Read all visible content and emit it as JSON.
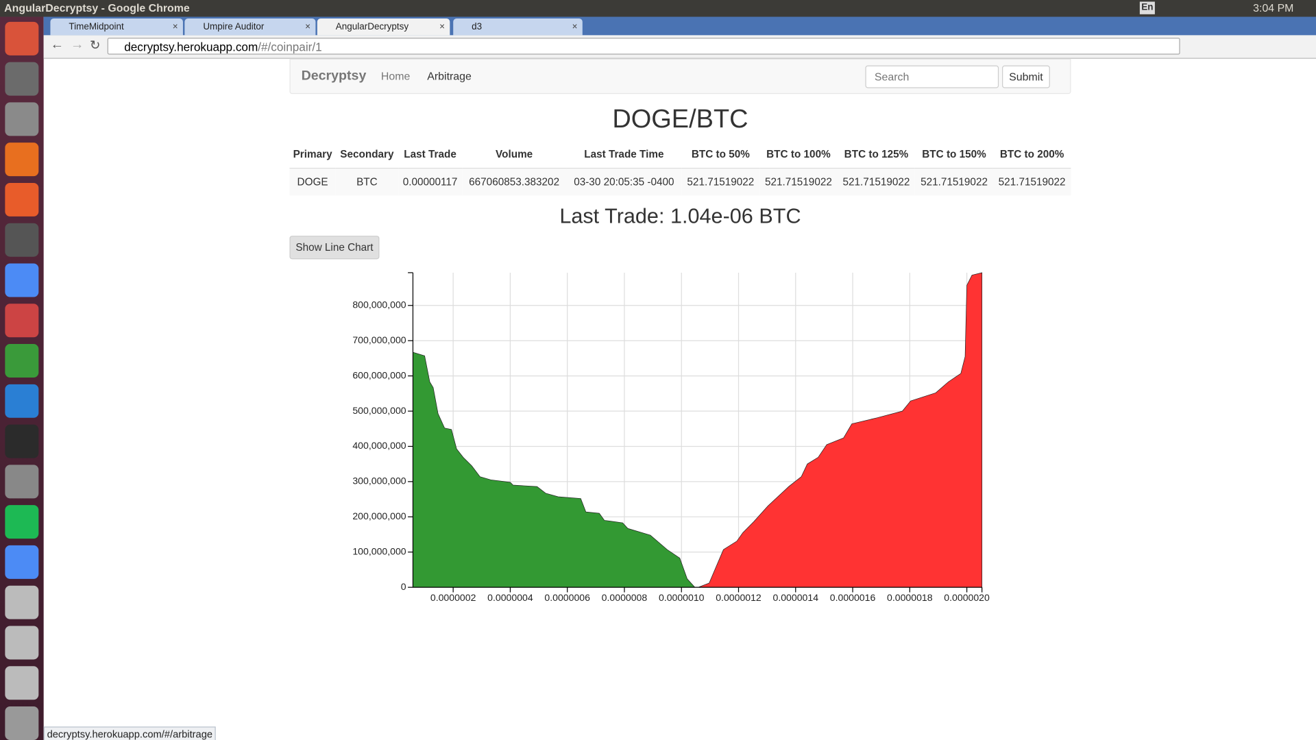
{
  "window_title": "AngularDecryptsy - Google Chrome",
  "keyboard": "En",
  "clock": "3:04 PM",
  "tabs": [
    "TimeMidpoint",
    "Umpire Auditor",
    "AngularDecryptsy",
    "d3"
  ],
  "address_bar": {
    "host": "decryptsy.herokuapp.com",
    "path": "/#/coinpair/1"
  },
  "navbar": {
    "brand": "Decryptsy",
    "links": [
      "Home",
      "Arbitrage"
    ],
    "search_placeholder": "Search",
    "submit": "Submit"
  },
  "heading": "DOGE/BTC",
  "table": {
    "header": [
      "Primary",
      "Secondary",
      "Last Trade",
      "Volume",
      "Last Trade Time",
      "BTC to 50%",
      "BTC to 100%",
      "BTC to 125%",
      "BTC to 150%",
      "BTC to 200%"
    ],
    "rows": [
      [
        "DOGE",
        "BTC",
        "0.00000117",
        "667060853.383202",
        "03-30 20:05:35 -0400",
        "521.71519022",
        "521.71519022",
        "521.71519022",
        "521.71519022",
        "521.71519022"
      ]
    ]
  },
  "last_trade": "Last Trade: 1.04e-06 BTC",
  "button": "Show Line Chart",
  "chart_data": {
    "type": "area",
    "grid": true,
    "xlim": [
      5.9e-08,
      2.053e-06
    ],
    "ylim": [
      0,
      893000000
    ],
    "xticks": [
      {
        "value": 2e-07,
        "label": "0.0000002"
      },
      {
        "value": 4e-07,
        "label": "0.0000004"
      },
      {
        "value": 6e-07,
        "label": "0.0000006"
      },
      {
        "value": 8e-07,
        "label": "0.0000008"
      },
      {
        "value": 1e-06,
        "label": "0.0000010"
      },
      {
        "value": 1.2e-06,
        "label": "0.0000012"
      },
      {
        "value": 1.4e-06,
        "label": "0.0000014"
      },
      {
        "value": 1.6e-06,
        "label": "0.0000016"
      },
      {
        "value": 1.8e-06,
        "label": "0.0000018"
      },
      {
        "value": 2e-06,
        "label": "0.0000020"
      }
    ],
    "yticks": [
      0,
      {
        "value": 100000000,
        "label": "100,000,000"
      },
      {
        "value": 200000000,
        "label": "200,000,000"
      },
      {
        "value": 300000000,
        "label": "300,000,000"
      },
      {
        "value": 400000000,
        "label": "400,000,000"
      },
      {
        "value": 500000000,
        "label": "500,000,000"
      },
      {
        "value": 600000000,
        "label": "600,000,000"
      },
      {
        "value": 700000000,
        "label": "700,000,000"
      },
      {
        "value": 800000000,
        "label": "800,000,000"
      }
    ],
    "series": [
      {
        "color": "#339933",
        "x": [
          5.9e-08,
          1e-07,
          1.18e-07,
          1.3e-07,
          1.47e-07,
          1.7e-07,
          1.94e-07,
          2.12e-07,
          2.35e-07,
          2.65e-07,
          2.94e-07,
          3.32e-07,
          4e-07,
          4.1e-07,
          4.94e-07,
          5.24e-07,
          5.68e-07,
          6.47e-07,
          6.65e-07,
          7.12e-07,
          7.3e-07,
          7.94e-07,
          8.12e-07,
          8.91e-07,
          9.5e-07,
          9.94e-07,
          1.02e-06,
          1.047e-06
        ],
        "values": [
          667000000,
          657000000,
          583000000,
          567000000,
          493000000,
          452000000,
          448000000,
          393000000,
          369000000,
          345000000,
          314000000,
          305000000,
          298000000,
          290000000,
          286000000,
          267000000,
          257000000,
          252000000,
          214000000,
          210000000,
          190000000,
          183000000,
          167000000,
          148000000,
          107000000,
          83000000,
          24000000,
          0
        ]
      },
      {
        "color": "#ff3333",
        "x": [
          1.059e-06,
          1.097e-06,
          1.147e-06,
          1.194e-06,
          1.215e-06,
          1.253e-06,
          1.303e-06,
          1.376e-06,
          1.42e-06,
          1.441e-06,
          1.479e-06,
          1.509e-06,
          1.568e-06,
          1.597e-06,
          1.685e-06,
          1.774e-06,
          1.803e-06,
          1.891e-06,
          1.935e-06,
          1.979e-06,
          1.994e-06,
          2e-06,
          2.018e-06,
          2.053e-06
        ],
        "values": [
          0,
          12000000,
          107000000,
          131000000,
          155000000,
          186000000,
          231000000,
          286000000,
          314000000,
          350000000,
          369000000,
          405000000,
          424000000,
          464000000,
          481000000,
          500000000,
          529000000,
          552000000,
          583000000,
          607000000,
          655000000,
          857000000,
          886000000,
          893000000
        ]
      }
    ]
  },
  "status_bar": "decryptsy.herokuapp.com/#/arbitrage"
}
